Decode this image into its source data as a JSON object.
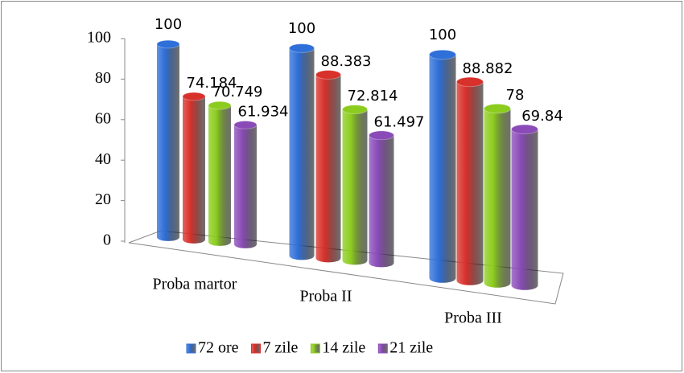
{
  "chart_data": {
    "type": "bar3d",
    "categories": [
      "Proba martor",
      "Proba II",
      "Proba III"
    ],
    "series": [
      {
        "name": "72 ore",
        "color": "#2e6fd8",
        "values": [
          100,
          100,
          100
        ]
      },
      {
        "name": "7 zile",
        "color": "#d8302a",
        "values": [
          74.184,
          88.383,
          88.882
        ]
      },
      {
        "name": "14 zile",
        "color": "#8ccc1e",
        "values": [
          70.749,
          72.814,
          78
        ]
      },
      {
        "name": "21 zile",
        "color": "#8a4bb8",
        "values": [
          61.934,
          61.497,
          69.84
        ]
      }
    ],
    "ylim": [
      0,
      100
    ],
    "yticks": [
      0,
      20,
      40,
      60,
      80,
      100
    ],
    "legend": "bottom"
  }
}
